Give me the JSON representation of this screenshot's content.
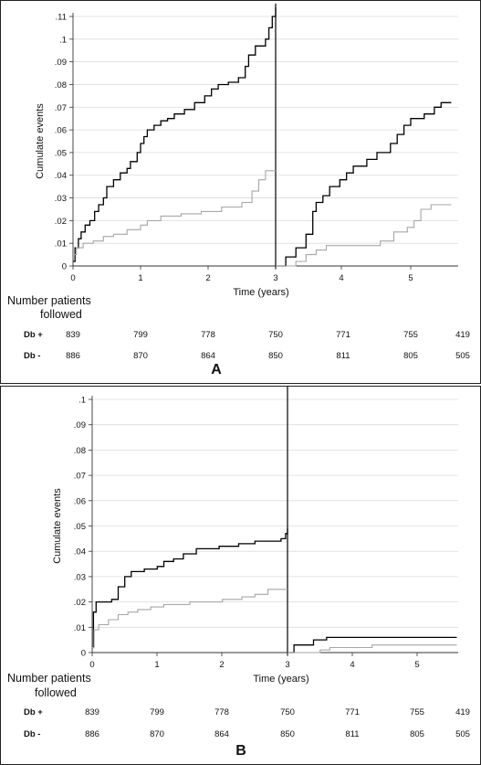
{
  "chart_data": [
    {
      "panel": "A",
      "type": "line",
      "ylabel": "Cumulate events",
      "xlabel": "Time (years)",
      "y_ticks": [
        "0",
        ".01",
        ".02",
        ".03",
        ".04",
        ".05",
        ".06",
        ".07",
        ".08",
        ".09",
        ".1",
        ".11"
      ],
      "x_ticks_left": [
        "0",
        "1",
        "2",
        "3"
      ],
      "x_ticks_right": [
        "4",
        "5"
      ],
      "ylim": [
        0,
        0.11
      ],
      "xlim": [
        0,
        5.6
      ],
      "grid": true,
      "series": [
        {
          "color": "#000000",
          "segments": [
            [
              [
                0,
                0.002
              ],
              [
                0.03,
                0.008
              ],
              [
                0.08,
                0.012
              ],
              [
                0.12,
                0.015
              ],
              [
                0.18,
                0.018
              ],
              [
                0.25,
                0.02
              ],
              [
                0.32,
                0.024
              ],
              [
                0.38,
                0.027
              ],
              [
                0.45,
                0.03
              ],
              [
                0.5,
                0.035
              ],
              [
                0.6,
                0.038
              ],
              [
                0.7,
                0.041
              ],
              [
                0.8,
                0.043
              ],
              [
                0.85,
                0.046
              ],
              [
                0.95,
                0.05
              ],
              [
                1.0,
                0.054
              ],
              [
                1.05,
                0.057
              ],
              [
                1.1,
                0.06
              ],
              [
                1.2,
                0.062
              ],
              [
                1.3,
                0.064
              ],
              [
                1.4,
                0.065
              ],
              [
                1.5,
                0.067
              ],
              [
                1.65,
                0.069
              ],
              [
                1.8,
                0.072
              ],
              [
                1.95,
                0.075
              ],
              [
                2.05,
                0.078
              ],
              [
                2.15,
                0.08
              ],
              [
                2.3,
                0.081
              ],
              [
                2.45,
                0.083
              ],
              [
                2.55,
                0.088
              ],
              [
                2.6,
                0.093
              ],
              [
                2.7,
                0.097
              ],
              [
                2.85,
                0.1
              ],
              [
                2.9,
                0.105
              ],
              [
                2.95,
                0.11
              ],
              [
                3.0,
                0.114
              ]
            ],
            [
              [
                3.0,
                0
              ],
              [
                3.15,
                0.004
              ],
              [
                3.3,
                0.008
              ],
              [
                3.45,
                0.014
              ],
              [
                3.55,
                0.024
              ],
              [
                3.6,
                0.028
              ],
              [
                3.7,
                0.031
              ],
              [
                3.8,
                0.035
              ],
              [
                3.95,
                0.038
              ],
              [
                4.05,
                0.041
              ],
              [
                4.15,
                0.044
              ],
              [
                4.35,
                0.047
              ],
              [
                4.5,
                0.05
              ],
              [
                4.7,
                0.054
              ],
              [
                4.8,
                0.058
              ],
              [
                4.9,
                0.062
              ],
              [
                5.0,
                0.065
              ],
              [
                5.2,
                0.067
              ],
              [
                5.35,
                0.07
              ],
              [
                5.45,
                0.072
              ],
              [
                5.6,
                0.072
              ]
            ]
          ]
        },
        {
          "color": "#a6a6a6",
          "segments": [
            [
              [
                0,
                0.005
              ],
              [
                0.05,
                0.008
              ],
              [
                0.15,
                0.01
              ],
              [
                0.3,
                0.011
              ],
              [
                0.45,
                0.013
              ],
              [
                0.6,
                0.014
              ],
              [
                0.8,
                0.016
              ],
              [
                1.0,
                0.018
              ],
              [
                1.1,
                0.02
              ],
              [
                1.3,
                0.022
              ],
              [
                1.6,
                0.023
              ],
              [
                1.9,
                0.024
              ],
              [
                2.2,
                0.026
              ],
              [
                2.5,
                0.028
              ],
              [
                2.65,
                0.033
              ],
              [
                2.75,
                0.038
              ],
              [
                2.85,
                0.042
              ],
              [
                3.0,
                0.042
              ]
            ],
            [
              [
                3.0,
                0
              ],
              [
                3.3,
                0.002
              ],
              [
                3.45,
                0.005
              ],
              [
                3.6,
                0.007
              ],
              [
                3.75,
                0.009
              ],
              [
                4.4,
                0.009
              ],
              [
                4.55,
                0.011
              ],
              [
                4.75,
                0.015
              ],
              [
                4.95,
                0.017
              ],
              [
                5.05,
                0.02
              ],
              [
                5.15,
                0.025
              ],
              [
                5.3,
                0.027
              ],
              [
                5.6,
                0.027
              ]
            ]
          ]
        }
      ],
      "risk_table": {
        "title": "Number patients followed",
        "rows": [
          {
            "label": "Db +",
            "values": [
              "839",
              "799",
              "778",
              "750",
              "771",
              "755",
              "419"
            ]
          },
          {
            "label": "Db -",
            "values": [
              "886",
              "870",
              "864",
              "850",
              "811",
              "805",
              "505"
            ]
          }
        ]
      },
      "panel_label": "A"
    },
    {
      "panel": "B",
      "type": "line",
      "ylabel": "Cumulate events",
      "xlabel": "Time (years)",
      "y_ticks": [
        "0",
        ".01",
        ".02",
        ".03",
        ".04",
        ".05",
        ".06",
        ".07",
        ".08",
        ".09",
        ".1"
      ],
      "x_ticks_left": [
        "0",
        "1",
        "2",
        "3"
      ],
      "x_ticks_right": [
        "4",
        "5"
      ],
      "ylim": [
        0,
        0.1
      ],
      "xlim": [
        0,
        5.6
      ],
      "grid": true,
      "series": [
        {
          "color": "#000000",
          "segments": [
            [
              [
                0,
                0.002
              ],
              [
                0.02,
                0.016
              ],
              [
                0.06,
                0.02
              ],
              [
                0.3,
                0.021
              ],
              [
                0.4,
                0.026
              ],
              [
                0.5,
                0.03
              ],
              [
                0.6,
                0.032
              ],
              [
                0.8,
                0.033
              ],
              [
                1.0,
                0.034
              ],
              [
                1.1,
                0.036
              ],
              [
                1.25,
                0.037
              ],
              [
                1.4,
                0.039
              ],
              [
                1.6,
                0.041
              ],
              [
                1.95,
                0.042
              ],
              [
                2.25,
                0.043
              ],
              [
                2.5,
                0.044
              ],
              [
                2.9,
                0.045
              ],
              [
                2.97,
                0.047
              ],
              [
                3.0,
                0.049
              ]
            ],
            [
              [
                3.0,
                0
              ],
              [
                3.1,
                0.003
              ],
              [
                3.4,
                0.005
              ],
              [
                3.6,
                0.006
              ],
              [
                5.6,
                0.006
              ]
            ]
          ]
        },
        {
          "color": "#a6a6a6",
          "segments": [
            [
              [
                0,
                0.002
              ],
              [
                0.03,
                0.009
              ],
              [
                0.1,
                0.011
              ],
              [
                0.25,
                0.013
              ],
              [
                0.4,
                0.015
              ],
              [
                0.55,
                0.016
              ],
              [
                0.7,
                0.017
              ],
              [
                0.9,
                0.018
              ],
              [
                1.1,
                0.019
              ],
              [
                1.5,
                0.02
              ],
              [
                2.0,
                0.021
              ],
              [
                2.3,
                0.022
              ],
              [
                2.5,
                0.023
              ],
              [
                2.7,
                0.025
              ],
              [
                3.0,
                0.025
              ]
            ],
            [
              [
                3.0,
                0
              ],
              [
                3.5,
                0.001
              ],
              [
                3.65,
                0.002
              ],
              [
                4.3,
                0.003
              ],
              [
                5.6,
                0.003
              ]
            ]
          ]
        }
      ],
      "risk_table": {
        "title": "Number patients followed",
        "rows": [
          {
            "label": "Db +",
            "values": [
              "839",
              "799",
              "778",
              "750",
              "771",
              "755",
              "419"
            ]
          },
          {
            "label": "Db -",
            "values": [
              "886",
              "870",
              "864",
              "850",
              "811",
              "805",
              "505"
            ]
          }
        ]
      },
      "panel_label": "B"
    }
  ]
}
